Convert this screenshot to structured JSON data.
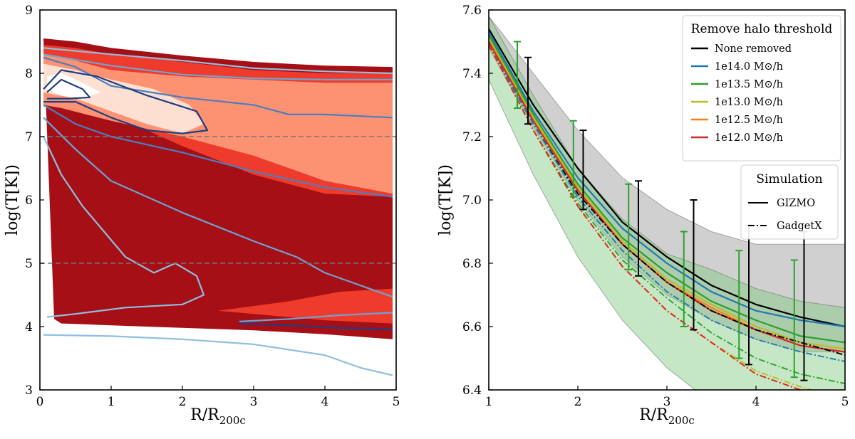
{
  "chart_data": [
    {
      "type": "contour",
      "xlabel": "R/R",
      "xlabel_sub": "200c",
      "ylabel": "log(T[K])",
      "xlim": [
        0,
        5
      ],
      "ylim": [
        3,
        9
      ],
      "xticks": [
        "0",
        "1",
        "2",
        "3",
        "4",
        "5"
      ],
      "yticks": [
        "3",
        "4",
        "5",
        "6",
        "7",
        "8",
        "9"
      ],
      "reference_lines": [
        7,
        5
      ],
      "filled_levels": [
        {
          "level": 1,
          "color": "#a50f15",
          "upper": [
            [
              0.05,
              8.55
            ],
            [
              0.5,
              8.5
            ],
            [
              1,
              8.4
            ],
            [
              2,
              8.28
            ],
            [
              3,
              8.18
            ],
            [
              4,
              8.12
            ],
            [
              4.95,
              8.1
            ]
          ],
          "lower": [
            [
              4.95,
              3.8
            ],
            [
              4,
              3.88
            ],
            [
              3,
              3.94
            ],
            [
              2,
              3.98
            ],
            [
              1,
              4.02
            ],
            [
              0.3,
              4.05
            ],
            [
              0.2,
              4.12
            ]
          ]
        },
        {
          "level": 2,
          "color": "#ef3b2c",
          "upper": [
            [
              0.05,
              8.45
            ],
            [
              0.5,
              8.4
            ],
            [
              1,
              8.3
            ],
            [
              2,
              8.18
            ],
            [
              3,
              8.05
            ],
            [
              4,
              8.0
            ],
            [
              4.95,
              8.0
            ]
          ],
          "lower": [
            [
              4.95,
              4.05
            ],
            [
              4,
              4.1
            ],
            [
              3.2,
              4.18
            ],
            [
              2.5,
              4.25
            ],
            [
              3.5,
              4.4
            ],
            [
              4.2,
              4.55
            ],
            [
              4.95,
              4.6
            ],
            [
              4.95,
              6.05
            ],
            [
              4,
              6.1
            ],
            [
              3,
              6.4
            ],
            [
              2,
              6.85
            ],
            [
              1,
              7.35
            ],
            [
              0.05,
              7.55
            ]
          ]
        },
        {
          "level": 3,
          "color": "#fc9272",
          "upper": [
            [
              0.05,
              8.3
            ],
            [
              0.5,
              8.2
            ],
            [
              1,
              8.05
            ],
            [
              2,
              7.95
            ],
            [
              3,
              7.9
            ],
            [
              4,
              7.85
            ],
            [
              4.95,
              7.85
            ]
          ],
          "lower": [
            [
              4.95,
              6.1
            ],
            [
              4,
              6.3
            ],
            [
              3,
              6.7
            ],
            [
              2,
              7.0
            ],
            [
              1,
              7.25
            ],
            [
              0.3,
              7.45
            ],
            [
              0.05,
              7.5
            ]
          ]
        },
        {
          "level": 4,
          "color": "#fee0d2",
          "upper": [
            [
              0.05,
              8.15
            ],
            [
              0.5,
              8.05
            ],
            [
              1,
              7.9
            ],
            [
              1.6,
              7.75
            ],
            [
              2.1,
              7.5
            ],
            [
              2.3,
              7.2
            ]
          ],
          "lower": [
            [
              2.3,
              7.2
            ],
            [
              2,
              7.05
            ],
            [
              1.5,
              7.2
            ],
            [
              1,
              7.4
            ],
            [
              0.5,
              7.6
            ],
            [
              0.05,
              7.7
            ]
          ]
        },
        {
          "level": 5,
          "color": "#ffffff",
          "upper": [
            [
              0.1,
              7.95
            ],
            [
              0.3,
              8.0
            ],
            [
              0.6,
              7.85
            ],
            [
              0.85,
              7.7
            ]
          ],
          "lower": [
            [
              0.85,
              7.7
            ],
            [
              0.6,
              7.6
            ],
            [
              0.3,
              7.65
            ],
            [
              0.1,
              7.75
            ]
          ]
        }
      ],
      "contour_lines": [
        {
          "color": "#8fbfe0",
          "points": [
            [
              0.05,
              8.4
            ],
            [
              1,
              8.3
            ],
            [
              2,
              8.2
            ],
            [
              3,
              8.08
            ],
            [
              4,
              8.03
            ],
            [
              4.95,
              8.0
            ]
          ]
        },
        {
          "color": "#6da3d4",
          "points": [
            [
              0.05,
              8.3
            ],
            [
              1,
              8.12
            ],
            [
              2,
              7.98
            ],
            [
              3,
              7.92
            ],
            [
              4,
              7.9
            ],
            [
              4.95,
              7.9
            ]
          ]
        },
        {
          "color": "#4a7fc0",
          "points": [
            [
              0.05,
              8.25
            ],
            [
              0.5,
              8.1
            ],
            [
              1,
              7.8
            ],
            [
              2,
              7.62
            ],
            [
              3,
              7.5
            ],
            [
              3.5,
              7.35
            ],
            [
              4,
              7.35
            ],
            [
              4.95,
              7.3
            ]
          ]
        },
        {
          "color": "#1f3d80",
          "points": [
            [
              0.05,
              7.75
            ],
            [
              0.3,
              8.05
            ],
            [
              0.8,
              7.95
            ],
            [
              1.5,
              7.65
            ],
            [
              2.2,
              7.4
            ],
            [
              2.35,
              7.1
            ],
            [
              2,
              7.05
            ],
            [
              1.5,
              7.1
            ],
            [
              1,
              7.3
            ],
            [
              0.5,
              7.55
            ],
            [
              0.05,
              7.55
            ]
          ]
        },
        {
          "color": "#1f3d80",
          "points": [
            [
              0.1,
              7.7
            ],
            [
              0.3,
              7.9
            ],
            [
              0.6,
              7.75
            ],
            [
              0.7,
              7.62
            ],
            [
              0.4,
              7.6
            ],
            [
              0.1,
              7.6
            ]
          ]
        },
        {
          "color": "#4a7fc0",
          "points": [
            [
              0.05,
              7.5
            ],
            [
              0.5,
              7.2
            ],
            [
              1,
              7.0
            ],
            [
              2,
              6.75
            ],
            [
              3,
              6.45
            ],
            [
              4,
              6.2
            ],
            [
              4.95,
              6.05
            ]
          ]
        },
        {
          "color": "#6da3d4",
          "points": [
            [
              0.05,
              7.3
            ],
            [
              0.5,
              6.8
            ],
            [
              1,
              6.3
            ],
            [
              2,
              5.8
            ],
            [
              3,
              5.35
            ],
            [
              3.6,
              5.1
            ],
            [
              4,
              4.85
            ],
            [
              4.95,
              4.47
            ]
          ]
        },
        {
          "color": "#8fbfe0",
          "points": [
            [
              0.05,
              7.0
            ],
            [
              0.3,
              6.4
            ],
            [
              0.6,
              5.9
            ],
            [
              0.9,
              5.5
            ],
            [
              1.2,
              5.1
            ],
            [
              1.6,
              4.85
            ],
            [
              1.9,
              5.0
            ],
            [
              2.2,
              4.8
            ],
            [
              2.3,
              4.5
            ],
            [
              2.0,
              4.35
            ],
            [
              1.2,
              4.3
            ],
            [
              0.5,
              4.2
            ],
            [
              0.1,
              4.15
            ]
          ]
        },
        {
          "color": "#6da3d4",
          "points": [
            [
              2.8,
              4.08
            ],
            [
              3.5,
              4.12
            ],
            [
              4.2,
              4.18
            ],
            [
              4.95,
              4.22
            ]
          ]
        },
        {
          "color": "#1f3d80",
          "points": [
            [
              2.8,
              4.05
            ],
            [
              3.5,
              4.02
            ],
            [
              4.2,
              3.98
            ],
            [
              4.95,
              3.96
            ]
          ]
        },
        {
          "color": "#8fbfe0",
          "points": [
            [
              0.05,
              3.87
            ],
            [
              1,
              3.85
            ],
            [
              2,
              3.8
            ],
            [
              3,
              3.72
            ],
            [
              4,
              3.55
            ],
            [
              4.5,
              3.35
            ],
            [
              4.95,
              3.23
            ]
          ]
        }
      ]
    },
    {
      "type": "line",
      "xlabel": "R/R",
      "xlabel_sub": "200c",
      "ylabel": "log(T[K])",
      "xlim": [
        1,
        5
      ],
      "ylim": [
        6.4,
        7.6
      ],
      "xticks": [
        "1",
        "2",
        "3",
        "4",
        "5"
      ],
      "yticks": [
        "6.4",
        "6.6",
        "6.8",
        "7.0",
        "7.2",
        "7.4",
        "7.6"
      ],
      "x": [
        1.0,
        1.5,
        2.0,
        2.5,
        3.0,
        3.5,
        4.0,
        4.5,
        5.0
      ],
      "legend_halo": {
        "title": "Remove halo threshold",
        "entries": [
          {
            "label": "None removed",
            "color": "#000000"
          },
          {
            "label": "1e14.0 M⊙/h",
            "color": "#1f77b4"
          },
          {
            "label": "1e13.5 M⊙/h",
            "color": "#2ca02c"
          },
          {
            "label": "1e13.0 M⊙/h",
            "color": "#bcbd22"
          },
          {
            "label": "1e12.5 M⊙/h",
            "color": "#ff7f0e"
          },
          {
            "label": "1e12.0 M⊙/h",
            "color": "#d62728"
          }
        ]
      },
      "legend_sim": {
        "title": "Simulation",
        "entries": [
          {
            "label": "GIZMO",
            "style": "solid"
          },
          {
            "label": "GadgetX",
            "style": "dashdot"
          }
        ]
      },
      "series": [
        {
          "name": "None removed",
          "sim": "GIZMO",
          "color": "#000000",
          "values": [
            7.54,
            7.3,
            7.1,
            6.93,
            6.82,
            6.73,
            6.67,
            6.63,
            6.6
          ]
        },
        {
          "name": "1e14.0 M⊙/h",
          "sim": "GIZMO",
          "color": "#1f77b4",
          "values": [
            7.53,
            7.28,
            7.07,
            6.91,
            6.8,
            6.71,
            6.65,
            6.62,
            6.6
          ]
        },
        {
          "name": "1e13.5 M⊙/h",
          "sim": "GIZMO",
          "color": "#2ca02c",
          "values": [
            7.52,
            7.27,
            7.05,
            6.88,
            6.77,
            6.68,
            6.62,
            6.57,
            6.55
          ]
        },
        {
          "name": "1e13.0 M⊙/h",
          "sim": "GIZMO",
          "color": "#bcbd22",
          "values": [
            7.51,
            7.26,
            7.04,
            6.87,
            6.75,
            6.67,
            6.6,
            6.55,
            6.53
          ]
        },
        {
          "name": "1e12.5 M⊙/h",
          "sim": "GIZMO",
          "color": "#ff7f0e",
          "values": [
            7.5,
            7.25,
            7.03,
            6.86,
            6.74,
            6.66,
            6.59,
            6.54,
            6.52
          ]
        },
        {
          "name": "1e12.0 M⊙/h",
          "sim": "GIZMO",
          "color": "#d62728",
          "values": [
            7.5,
            7.25,
            7.03,
            6.86,
            6.74,
            6.65,
            6.59,
            6.54,
            6.52
          ]
        },
        {
          "name": "None removed",
          "sim": "GadgetX",
          "color": "#000000",
          "values": [
            7.49,
            7.24,
            7.02,
            6.86,
            6.74,
            6.65,
            6.59,
            6.55,
            6.51
          ]
        },
        {
          "name": "1e14.0 M⊙/h",
          "sim": "GadgetX",
          "color": "#1f77b4",
          "values": [
            7.49,
            7.24,
            7.01,
            6.84,
            6.71,
            6.62,
            6.56,
            6.52,
            6.49
          ]
        },
        {
          "name": "1e13.5 M⊙/h",
          "sim": "GadgetX",
          "color": "#2ca02c",
          "values": [
            7.49,
            7.22,
            6.99,
            6.81,
            6.69,
            6.58,
            6.5,
            6.45,
            6.42
          ]
        },
        {
          "name": "1e13.0 M⊙/h",
          "sim": "GadgetX",
          "color": "#bcbd22",
          "values": [
            7.49,
            7.22,
            6.98,
            6.79,
            6.65,
            6.55,
            6.46,
            6.41,
            6.37
          ]
        },
        {
          "name": "1e12.5 M⊙/h",
          "sim": "GadgetX",
          "color": "#ff7f0e",
          "values": [
            7.49,
            7.22,
            6.98,
            6.79,
            6.65,
            6.55,
            6.45,
            6.4,
            6.36
          ]
        },
        {
          "name": "1e12.0 M⊙/h",
          "sim": "GadgetX",
          "color": "#d62728",
          "values": [
            7.49,
            7.22,
            6.98,
            6.79,
            6.65,
            6.55,
            6.45,
            6.4,
            6.36
          ]
        }
      ],
      "bands": [
        {
          "color": "#aaaaaa",
          "opacity": 0.55,
          "upper": [
            7.58,
            7.4,
            7.22,
            7.07,
            6.97,
            6.9,
            6.86,
            6.86,
            6.86
          ],
          "lower": [
            7.48,
            7.23,
            7.0,
            6.82,
            6.7,
            6.62,
            6.56,
            6.52,
            6.52
          ]
        },
        {
          "color": "#7fc97f",
          "opacity": 0.45,
          "upper": [
            7.58,
            7.33,
            7.1,
            6.94,
            6.83,
            6.78,
            6.72,
            6.68,
            6.66
          ],
          "lower": [
            7.38,
            7.08,
            6.82,
            6.62,
            6.47,
            6.36,
            6.3,
            6.26,
            6.23
          ]
        }
      ],
      "error_bars": [
        {
          "x": 1.32,
          "y": 7.39,
          "low": 7.29,
          "high": 7.5,
          "color": "#2ca02c"
        },
        {
          "x": 1.95,
          "y": 7.13,
          "low": 7.01,
          "high": 7.25,
          "color": "#2ca02c"
        },
        {
          "x": 2.57,
          "y": 6.91,
          "low": 6.78,
          "high": 7.05,
          "color": "#2ca02c"
        },
        {
          "x": 3.19,
          "y": 6.75,
          "low": 6.6,
          "high": 6.9,
          "color": "#2ca02c"
        },
        {
          "x": 3.81,
          "y": 6.67,
          "low": 6.5,
          "high": 6.84,
          "color": "#2ca02c"
        },
        {
          "x": 4.43,
          "y": 6.62,
          "low": 6.44,
          "high": 6.81,
          "color": "#2ca02c"
        },
        {
          "x": 1.44,
          "y": 7.34,
          "low": 7.24,
          "high": 7.45,
          "color": "#000000"
        },
        {
          "x": 2.06,
          "y": 7.1,
          "low": 6.97,
          "high": 7.22,
          "color": "#000000"
        },
        {
          "x": 2.68,
          "y": 6.9,
          "low": 6.76,
          "high": 7.06,
          "color": "#000000"
        },
        {
          "x": 3.3,
          "y": 6.79,
          "low": 6.59,
          "high": 7.0,
          "color": "#000000"
        },
        {
          "x": 3.92,
          "y": 6.7,
          "low": 6.48,
          "high": 6.92,
          "color": "#000000"
        },
        {
          "x": 4.54,
          "y": 6.67,
          "low": 6.43,
          "high": 6.9,
          "color": "#000000"
        }
      ]
    }
  ]
}
